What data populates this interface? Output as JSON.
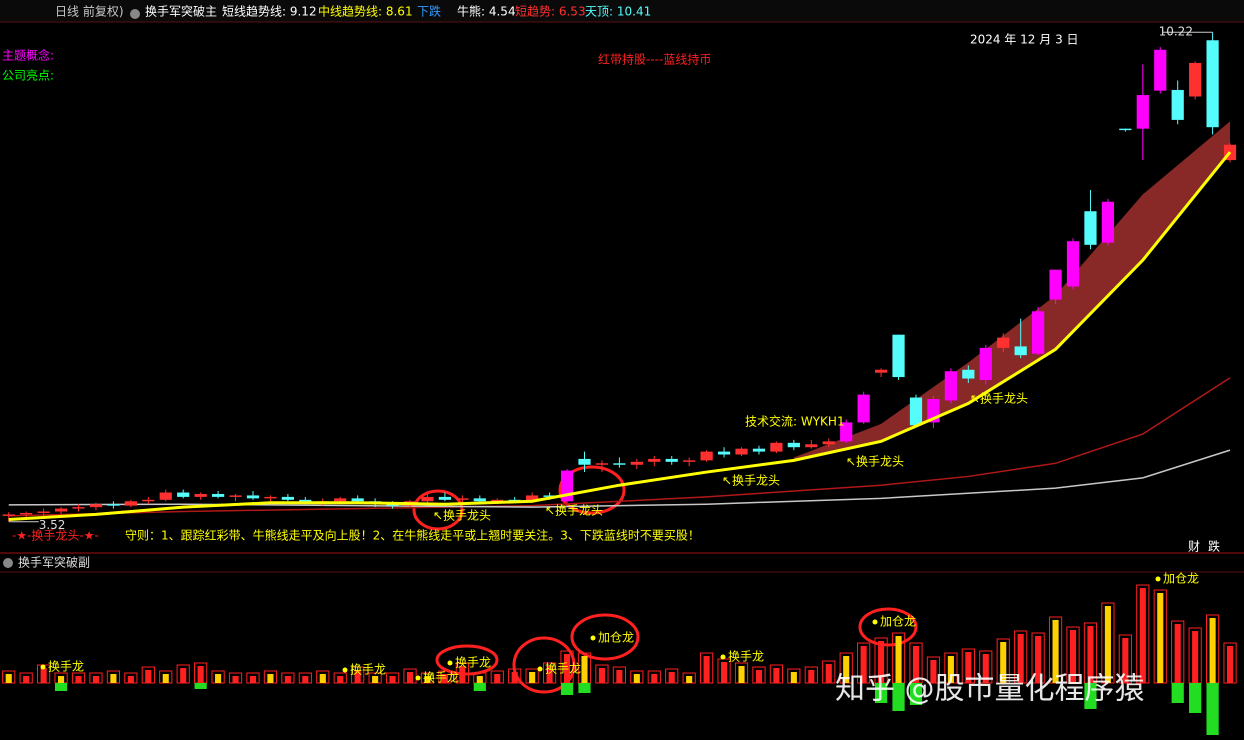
{
  "header": {
    "items": [
      {
        "text": "日线 前复权)",
        "color": "#c8c8c8"
      },
      {
        "text": "换手军突破主",
        "color": "#ffffff"
      },
      {
        "text": "短线趋势线: 9.12",
        "color": "#ffffff"
      },
      {
        "text": "中线趋势线: 8.61",
        "color": "#ffff00"
      },
      {
        "text": "下跌",
        "color": "#3399ff"
      },
      {
        "text": "牛熊: 4.54",
        "color": "#ffffff"
      },
      {
        "text": "短趋势: 6.53",
        "color": "#ff3030"
      },
      {
        "text": "天顶: 10.41",
        "color": "#54fcfc"
      }
    ]
  },
  "chart_data": [
    {
      "type": "candlestick",
      "xlim": [
        -0.5,
        70.8
      ],
      "ylim": [
        3.27,
        10.36
      ],
      "open": [
        3.6,
        3.62,
        3.64,
        3.66,
        3.7,
        3.72,
        3.76,
        3.74,
        3.8,
        3.82,
        3.92,
        3.86,
        3.9,
        3.86,
        3.88,
        3.84,
        3.86,
        3.82,
        3.78,
        3.8,
        3.84,
        3.8,
        3.76,
        3.74,
        3.8,
        3.86,
        3.82,
        3.84,
        3.8,
        3.82,
        3.8,
        3.88,
        3.8,
        4.38,
        4.3,
        4.32,
        4.3,
        4.34,
        4.38,
        4.34,
        4.36,
        4.48,
        4.44,
        4.52,
        4.48,
        4.6,
        4.54,
        4.58,
        4.62,
        4.88,
        5.56,
        6.08,
        5.22,
        4.88,
        5.18,
        5.6,
        5.46,
        5.9,
        5.92,
        5.82,
        6.56,
        6.74,
        7.77,
        7.34,
        8.9,
        8.9,
        9.42,
        9.43,
        9.34,
        10.11,
        8.47
      ],
      "high": [
        3.65,
        3.66,
        3.7,
        3.72,
        3.76,
        3.78,
        3.8,
        3.82,
        3.86,
        3.96,
        3.96,
        3.92,
        3.94,
        3.9,
        3.94,
        3.88,
        3.9,
        3.86,
        3.84,
        3.86,
        3.88,
        3.84,
        3.8,
        3.82,
        3.9,
        3.92,
        3.88,
        3.88,
        3.84,
        3.86,
        3.92,
        3.92,
        4.24,
        4.48,
        4.36,
        4.4,
        4.38,
        4.42,
        4.42,
        4.4,
        4.5,
        4.54,
        4.54,
        4.56,
        4.62,
        4.64,
        4.64,
        4.66,
        4.92,
        5.3,
        5.62,
        6.08,
        5.26,
        5.24,
        5.62,
        5.66,
        5.94,
        6.1,
        6.3,
        6.46,
        6.97,
        7.4,
        8.06,
        7.94,
        8.9,
        9.78,
        10.02,
        9.56,
        9.82,
        10.22,
        8.7
      ],
      "low": [
        3.52,
        3.58,
        3.6,
        3.62,
        3.66,
        3.68,
        3.7,
        3.72,
        3.76,
        3.8,
        3.84,
        3.82,
        3.84,
        3.8,
        3.82,
        3.78,
        3.8,
        3.76,
        3.74,
        3.76,
        3.78,
        3.72,
        3.7,
        3.72,
        3.78,
        3.8,
        3.78,
        3.78,
        3.76,
        3.78,
        3.78,
        3.82,
        3.78,
        4.2,
        4.2,
        4.26,
        4.24,
        4.28,
        4.3,
        4.28,
        4.34,
        4.4,
        4.42,
        4.44,
        4.46,
        4.5,
        4.52,
        4.54,
        4.6,
        4.86,
        5.5,
        5.46,
        4.82,
        4.8,
        5.14,
        5.42,
        5.4,
        5.84,
        5.76,
        5.8,
        6.5,
        6.7,
        7.25,
        7.3,
        8.86,
        8.47,
        9.38,
        8.96,
        9.3,
        8.82,
        8.44
      ],
      "close": [
        3.62,
        3.64,
        3.66,
        3.7,
        3.72,
        3.76,
        3.74,
        3.8,
        3.82,
        3.92,
        3.86,
        3.9,
        3.86,
        3.88,
        3.84,
        3.86,
        3.82,
        3.78,
        3.8,
        3.84,
        3.8,
        3.76,
        3.74,
        3.8,
        3.86,
        3.82,
        3.84,
        3.8,
        3.82,
        3.8,
        3.88,
        3.86,
        4.22,
        4.3,
        4.32,
        4.3,
        4.34,
        4.38,
        4.34,
        4.36,
        4.48,
        4.44,
        4.52,
        4.48,
        4.6,
        4.54,
        4.58,
        4.62,
        4.88,
        5.26,
        5.6,
        5.5,
        4.84,
        5.2,
        5.58,
        5.48,
        5.9,
        6.04,
        5.8,
        6.4,
        6.97,
        7.36,
        7.31,
        7.9,
        8.88,
        9.36,
        9.98,
        9.02,
        9.8,
        8.92,
        8.68
      ],
      "colors": {
        "up": "#ff3030",
        "strong_up": "#ff00ff",
        "down": "#54fcfc"
      },
      "band": {
        "color": "#a0302e",
        "x": [
          45,
          50,
          55,
          60,
          65,
          70
        ],
        "values": [
          4.4,
          4.86,
          5.7,
          6.62,
          8.0,
          9.0
        ]
      },
      "lines": [
        {
          "color": "#ffff00",
          "x": [
            0,
            5,
            10,
            15,
            20,
            25,
            30,
            35,
            40,
            45,
            50,
            55,
            60,
            65,
            70
          ],
          "values": [
            3.55,
            3.62,
            3.72,
            3.78,
            3.78,
            3.76,
            3.8,
            4.02,
            4.2,
            4.36,
            4.62,
            5.14,
            5.88,
            7.1,
            8.58
          ]
        },
        {
          "color": "#b01818",
          "x": [
            0,
            10,
            20,
            30,
            40,
            50,
            55,
            60,
            65,
            70
          ],
          "values": [
            3.6,
            3.66,
            3.7,
            3.74,
            3.86,
            4.02,
            4.14,
            4.32,
            4.72,
            5.49
          ]
        },
        {
          "color": "#c8c8c8",
          "x": [
            0,
            10,
            20,
            30,
            40,
            50,
            60,
            65,
            70
          ],
          "values": [
            3.75,
            3.76,
            3.74,
            3.72,
            3.76,
            3.84,
            3.98,
            4.12,
            4.5
          ]
        }
      ],
      "annotations": [
        {
          "text": "主题概念:",
          "color": "#ff00ff"
        },
        {
          "text": "公司亮点:",
          "color": "#00ff00"
        },
        {
          "text": "红带持股----蓝线持币",
          "color": "#ff2020"
        },
        {
          "text": "2024 年 12 月 3 日",
          "color": "#ffffff"
        },
        {
          "text": "技术交流: WYKH1",
          "color": "#ffff00"
        },
        {
          "text": "↖换手龙头",
          "color": "#ffff00"
        },
        {
          "text": "↖换手龙头",
          "color": "#ffff00"
        },
        {
          "text": "↖换手龙头",
          "color": "#ffff00"
        },
        {
          "text": "↖换手龙头",
          "color": "#ffff00"
        },
        {
          "text": "↖换手龙头",
          "color": "#ffff00"
        },
        {
          "text": "-★-换手龙头-★-",
          "color": "#ff2020"
        },
        {
          "text": "守则：1、跟踪红彩带、牛熊线走平及向上股！2、在牛熊线走平或上翘时要关注。3、下跌蓝线时不要买股！",
          "color": "#ffff00"
        },
        {
          "text": "财",
          "color": "#ffffff"
        },
        {
          "text": "跌",
          "color": "#ffffff"
        }
      ]
    },
    {
      "type": "bar",
      "title": "换手军突破副",
      "xlim": [
        -0.5,
        70.8
      ],
      "ylim": [
        -52,
        115
      ],
      "series": [
        {
          "color": "#ff2020",
          "values": [
            12,
            10,
            18,
            10,
            10,
            10,
            12,
            10,
            16,
            12,
            18,
            20,
            12,
            10,
            10,
            12,
            10,
            10,
            12,
            10,
            16,
            10,
            10,
            14,
            10,
            12,
            20,
            10,
            12,
            14,
            14,
            20,
            32,
            30,
            18,
            16,
            12,
            12,
            14,
            10,
            30,
            24,
            20,
            16,
            18,
            14,
            16,
            22,
            30,
            40,
            45,
            50,
            40,
            26,
            30,
            34,
            32,
            44,
            52,
            50,
            66,
            56,
            60,
            80,
            48,
            98,
            93,
            62,
            55,
            68,
            40
          ]
        },
        {
          "color": "#22dd22",
          "values": [
            0,
            0,
            0,
            -8,
            0,
            0,
            0,
            0,
            0,
            0,
            0,
            -6,
            0,
            0,
            0,
            0,
            0,
            0,
            0,
            0,
            0,
            0,
            0,
            0,
            0,
            0,
            0,
            -8,
            0,
            0,
            0,
            0,
            -12,
            -10,
            0,
            0,
            0,
            0,
            0,
            0,
            0,
            0,
            0,
            0,
            0,
            0,
            0,
            0,
            0,
            0,
            -20,
            -28,
            -22,
            0,
            0,
            0,
            0,
            0,
            0,
            0,
            0,
            0,
            -26,
            0,
            0,
            0,
            0,
            -20,
            -30,
            -52,
            0
          ]
        }
      ],
      "annotations": [
        {
          "text": "换手龙",
          "color": "#ffff00"
        },
        {
          "text": "换手龙",
          "color": "#ffff00"
        },
        {
          "text": "换手龙",
          "color": "#ffff00"
        },
        {
          "text": "换手龙",
          "color": "#ffff00"
        },
        {
          "text": "换手龙",
          "color": "#ffff00"
        },
        {
          "text": "换手龙",
          "color": "#ffff00"
        },
        {
          "text": "加仓龙",
          "color": "#ffff00"
        },
        {
          "text": "加仓龙",
          "color": "#ffff00"
        },
        {
          "text": "加仓龙",
          "color": "#ffff00"
        }
      ]
    }
  ],
  "watermark": "知乎 @股市量化程序猿"
}
